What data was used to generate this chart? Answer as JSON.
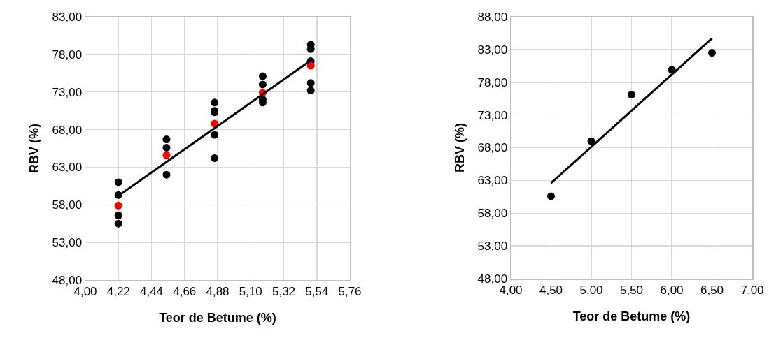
{
  "chart_data": [
    {
      "type": "scatter",
      "xlabel": "Teor de Betume (%)",
      "ylabel": "RBV (%)",
      "grid": true,
      "marker": "circle",
      "xlim": [
        4.0,
        5.76
      ],
      "xticks": [
        {
          "value": 4.0,
          "label": "4,00"
        },
        {
          "value": 4.22,
          "label": "4,22"
        },
        {
          "value": 4.44,
          "label": "4,44"
        },
        {
          "value": 4.66,
          "label": "4,66"
        },
        {
          "value": 4.88,
          "label": "4,88"
        },
        {
          "value": 5.1,
          "label": "5,10"
        },
        {
          "value": 5.32,
          "label": "5,32"
        },
        {
          "value": 5.54,
          "label": "5,54"
        },
        {
          "value": 5.76,
          "label": "5,76"
        }
      ],
      "ylim": [
        48,
        83
      ],
      "yticks": [
        {
          "value": 48,
          "label": "48,00"
        },
        {
          "value": 53,
          "label": "53,00"
        },
        {
          "value": 58,
          "label": "58,00"
        },
        {
          "value": 63,
          "label": "63,00"
        },
        {
          "value": 68,
          "label": "68,00"
        },
        {
          "value": 73,
          "label": "73,00"
        },
        {
          "value": 78,
          "label": "78,00"
        },
        {
          "value": 83,
          "label": "83,00"
        }
      ],
      "series": [
        {
          "color": "#000000",
          "x": [
            4.22,
            4.22,
            4.22,
            4.22,
            4.54,
            4.54,
            4.54,
            4.86,
            4.86,
            4.86,
            4.86,
            4.86,
            5.18,
            5.18,
            5.18,
            5.18,
            5.5,
            5.5,
            5.5,
            5.5,
            5.5
          ],
          "values": [
            61.0,
            59.3,
            56.6,
            55.5,
            66.7,
            65.6,
            62.0,
            71.6,
            70.5,
            70.3,
            67.3,
            64.2,
            75.1,
            74.0,
            72.0,
            71.6,
            79.3,
            78.7,
            77.1,
            74.2,
            73.2
          ]
        },
        {
          "color": "#ff0000",
          "x": [
            4.22,
            4.54,
            4.86,
            5.18,
            5.5
          ],
          "values": [
            57.9,
            64.6,
            68.8,
            72.9,
            76.5
          ]
        },
        {
          "type": "line",
          "color": "#000000",
          "marker": "none",
          "x": [
            4.22,
            5.5
          ],
          "values": [
            59.2,
            77.2
          ]
        }
      ]
    },
    {
      "type": "scatter",
      "xlabel": "Teor de Betume (%)",
      "ylabel": "RBV (%)",
      "grid": true,
      "marker": "circle",
      "xlim": [
        4.0,
        7.0
      ],
      "xticks": [
        {
          "value": 4.0,
          "label": "4,00"
        },
        {
          "value": 4.5,
          "label": "4,50"
        },
        {
          "value": 5.0,
          "label": "5,00"
        },
        {
          "value": 5.5,
          "label": "5,50"
        },
        {
          "value": 6.0,
          "label": "6,00"
        },
        {
          "value": 6.5,
          "label": "6,50"
        },
        {
          "value": 7.0,
          "label": "7,00"
        }
      ],
      "ylim": [
        48,
        88
      ],
      "yticks": [
        {
          "value": 48,
          "label": "48,00"
        },
        {
          "value": 53,
          "label": "53,00"
        },
        {
          "value": 58,
          "label": "58,00"
        },
        {
          "value": 63,
          "label": "63,00"
        },
        {
          "value": 68,
          "label": "68,00"
        },
        {
          "value": 73,
          "label": "73,00"
        },
        {
          "value": 78,
          "label": "78,00"
        },
        {
          "value": 83,
          "label": "83,00"
        },
        {
          "value": 88,
          "label": "88,00"
        }
      ],
      "series": [
        {
          "color": "#000000",
          "x": [
            4.5,
            5.0,
            5.5,
            6.0,
            6.5
          ],
          "values": [
            60.6,
            69.0,
            76.1,
            79.9,
            82.5
          ]
        },
        {
          "type": "line",
          "color": "#000000",
          "marker": "none",
          "x": [
            4.5,
            6.5
          ],
          "values": [
            62.6,
            84.7
          ]
        }
      ]
    }
  ]
}
